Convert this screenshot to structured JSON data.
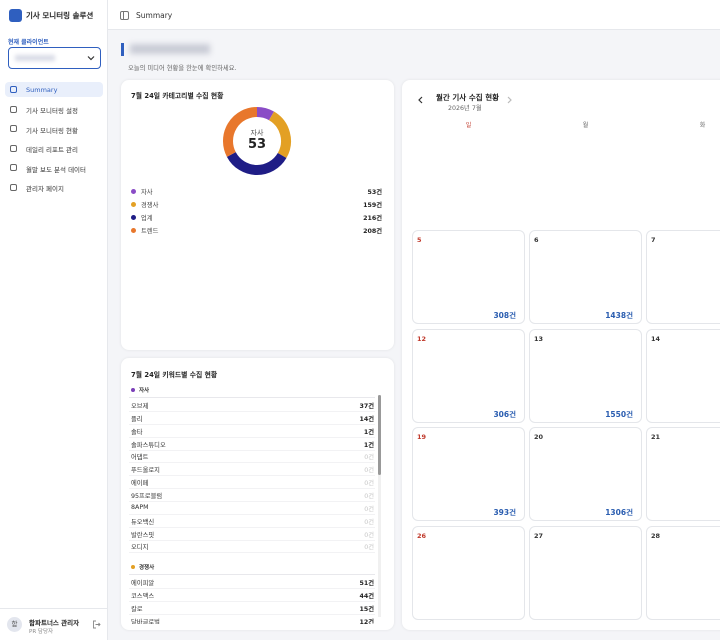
{
  "sidebar": {
    "app_title": "기사 모니터링 솔루션",
    "client_label": "현재 클라이언트",
    "nav": [
      "Summary",
      "기사 모니터링 설정",
      "기사 모니터링 현황",
      "데일리 리포트 관리",
      "월말 보도 분석 데이터",
      "관리자 페이지"
    ],
    "user": {
      "avatar": "함",
      "name": "함파트너스 관리자",
      "role": "PR 담당자"
    }
  },
  "header": {
    "title": "Summary"
  },
  "page": {
    "subtitle": "오늘의 미디어 현황을 한눈에 확인하세요."
  },
  "category_card": {
    "title": "7월 24일 카테고리별 수집 현황",
    "center_label": "자사",
    "center_value": 53,
    "items": [
      {
        "name": "자사",
        "value": 53,
        "value_label": "53건",
        "color": "#8a4cc6"
      },
      {
        "name": "경쟁사",
        "value": 159,
        "value_label": "159건",
        "color": "#e3a024"
      },
      {
        "name": "업계",
        "value": 216,
        "value_label": "216건",
        "color": "#1f1d86"
      },
      {
        "name": "트렌드",
        "value": 208,
        "value_label": "208건",
        "color": "#e8772c"
      }
    ]
  },
  "keyword_card": {
    "title": "7월 24일 키워드별 수집 현황",
    "groups": [
      {
        "name": "자사",
        "color": "#7b3fb8",
        "items": [
          {
            "name": "오브제",
            "count": "37건"
          },
          {
            "name": "플리",
            "count": "14건"
          },
          {
            "name": "솔타",
            "count": "1건"
          },
          {
            "name": "솔파스튜디오",
            "count": "1건"
          },
          {
            "name": "어댑트",
            "count": "0건"
          },
          {
            "name": "푸드올로지",
            "count": "0건"
          },
          {
            "name": "에이페",
            "count": "0건"
          },
          {
            "name": "95프로블럼",
            "count": "0건"
          },
          {
            "name": "8APM",
            "count": "0건"
          },
          {
            "name": "듀오백신",
            "count": "0건"
          },
          {
            "name": "발란스핏",
            "count": "0건"
          },
          {
            "name": "오디지",
            "count": "0건"
          }
        ]
      },
      {
        "name": "경쟁사",
        "color": "#e3a024",
        "items": [
          {
            "name": "에이피알",
            "count": "51건"
          },
          {
            "name": "코스맥스",
            "count": "44건"
          },
          {
            "name": "칼로",
            "count": "15건"
          },
          {
            "name": "달바글로벌",
            "count": "12건"
          }
        ]
      }
    ]
  },
  "calendar": {
    "title": "월간 기사 수집 현황",
    "month": "2026년 7월",
    "weekdays": [
      "일",
      "월",
      "화"
    ],
    "weeks": [
      [
        {
          "day": 5,
          "count": "308건"
        },
        {
          "day": 6,
          "count": "1438건"
        },
        {
          "day": 7
        }
      ],
      [
        {
          "day": 12,
          "count": "306건"
        },
        {
          "day": 13,
          "count": "1550건"
        },
        {
          "day": 14
        }
      ],
      [
        {
          "day": 19,
          "count": "393건"
        },
        {
          "day": 20,
          "count": "1306건"
        },
        {
          "day": 21
        }
      ],
      [
        {
          "day": 26
        },
        {
          "day": 27
        },
        {
          "day": 28
        }
      ]
    ]
  }
}
